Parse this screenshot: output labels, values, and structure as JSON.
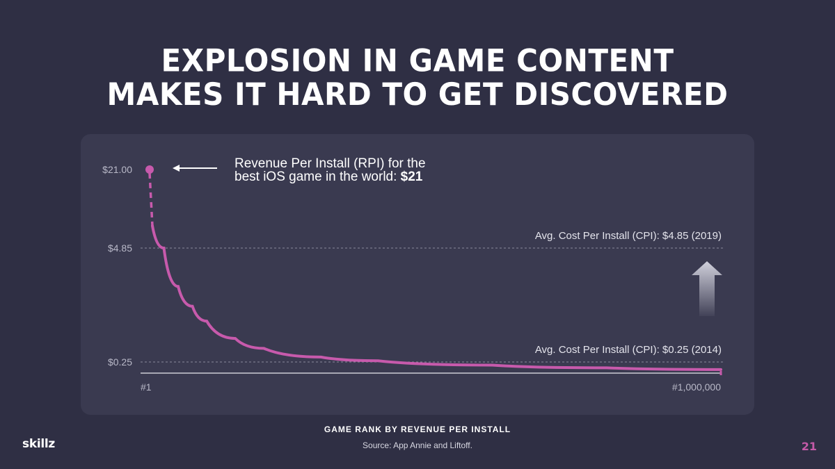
{
  "title": {
    "line1": "EXPLOSION IN GAME CONTENT",
    "line2": "MAKES IT HARD TO GET DISCOVERED"
  },
  "callout": {
    "text": "Revenue Per Install (RPI) for the",
    "text2": "best iOS game in the world: ",
    "bold": "$21"
  },
  "chart_data": {
    "type": "line",
    "xlabel": "GAME RANK BY REVENUE PER INSTALL",
    "ylabel": "",
    "x_ticks": [
      "#1",
      "#1,000,000"
    ],
    "y_ticks": [
      "$21.00",
      "$4.85",
      "$0.25"
    ],
    "series": [
      {
        "values_note": "",
        "x": [
          1,
          10000,
          25000,
          50000,
          75000,
          100000,
          150000,
          200000,
          300000,
          400000,
          600000,
          800000,
          1000000
        ],
        "y": [
          21.0,
          7.5,
          4.85,
          3.3,
          2.5,
          1.9,
          1.2,
          0.8,
          0.45,
          0.3,
          0.18,
          0.12,
          0.08
        ]
      }
    ],
    "reference_lines": [
      {
        "label": "Avg. Cost Per Install (CPI): $4.85 (2019)",
        "value": 4.85
      },
      {
        "label": "Avg. Cost Per Install (CPI): $0.25 (2014)",
        "value": 0.25
      }
    ],
    "colors": {
      "line": "#c75aac",
      "ref": "#8a8a9c"
    }
  },
  "source": "Source: App Annie and Liftoff.",
  "brand": "skillz",
  "page_number": "21"
}
